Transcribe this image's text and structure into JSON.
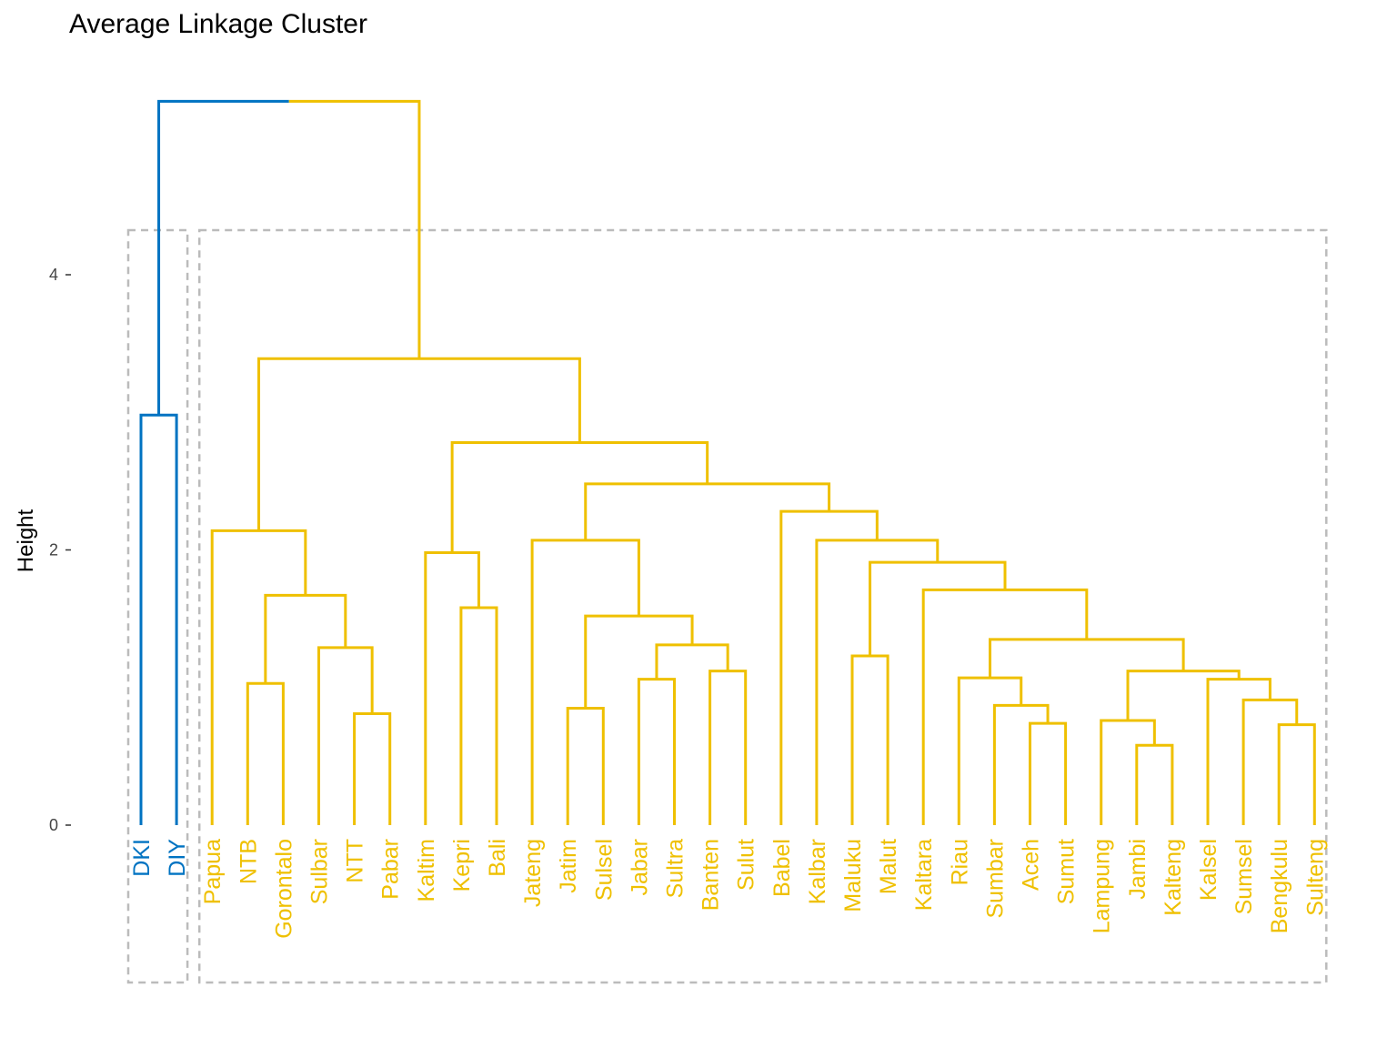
{
  "title": "Average Linkage Cluster",
  "chart_data": {
    "type": "dendrogram",
    "title": "Average Linkage Cluster",
    "ylabel": "Height",
    "xlabel": "",
    "ylim": [
      -0.95,
      4.95
    ],
    "yticks": [
      0,
      2,
      4
    ],
    "colors": {
      "cluster1": "#0073C2",
      "cluster2": "#EFC000",
      "box": "#BBBBBB",
      "axis": "#333333"
    },
    "clusters": [
      {
        "color": "cluster1",
        "leaves": [
          "DKI",
          "DIY"
        ]
      },
      {
        "color": "cluster2",
        "leaves": [
          "Papua",
          "NTB",
          "Gorontalo",
          "Sulbar",
          "NTT",
          "Pabar",
          "Kaltim",
          "Kepri",
          "Bali",
          "Jateng",
          "Jatim",
          "Sulsel",
          "Jabar",
          "Sultra",
          "Banten",
          "Sulut",
          "Babel",
          "Kalbar",
          "Maluku",
          "Malut",
          "Kaltara",
          "Riau",
          "Sumbar",
          "Aceh",
          "Sumut",
          "Lampung",
          "Jambi",
          "Kalteng",
          "Kalsel",
          "Sumsel",
          "Bengkulu",
          "Sulteng"
        ]
      }
    ],
    "leaves": [
      "DKI",
      "DIY",
      "Papua",
      "NTB",
      "Gorontalo",
      "Sulbar",
      "NTT",
      "Pabar",
      "Kaltim",
      "Kepri",
      "Bali",
      "Jateng",
      "Jatim",
      "Sulsel",
      "Jabar",
      "Sultra",
      "Banten",
      "Sulut",
      "Babel",
      "Kalbar",
      "Maluku",
      "Malut",
      "Kaltara",
      "Riau",
      "Sumbar",
      "Aceh",
      "Sumut",
      "Lampung",
      "Jambi",
      "Kalteng",
      "Kalsel",
      "Sumsel",
      "Bengkulu",
      "Sulteng"
    ],
    "merges": [
      {
        "left": "DKI",
        "right": "DIY",
        "height": 2.98
      },
      {
        "left": "NTB",
        "right": "Gorontalo",
        "height": 1.03
      },
      {
        "left": "NTT",
        "right": "Pabar",
        "height": 0.81
      },
      {
        "left": "Sulbar",
        "right": "NTT+Pabar",
        "height": 1.29
      },
      {
        "left": "NTB+Gorontalo",
        "right": "Sulbar+NTT+Pabar",
        "height": 1.67
      },
      {
        "left": "Papua",
        "right": "NTB..Pabar",
        "height": 2.14
      },
      {
        "left": "Kepri",
        "right": "Bali",
        "height": 1.58
      },
      {
        "left": "Kaltim",
        "right": "Kepri+Bali",
        "height": 1.98
      },
      {
        "left": "Jatim",
        "right": "Sulsel",
        "height": 0.85
      },
      {
        "left": "Jabar",
        "right": "Sultra",
        "height": 1.06
      },
      {
        "left": "Banten",
        "right": "Sulut",
        "height": 1.12
      },
      {
        "left": "Jabar+Sultra",
        "right": "Banten+Sulut",
        "height": 1.31
      },
      {
        "left": "Jatim+Sulsel",
        "right": "Jabar..Sulut",
        "height": 1.52
      },
      {
        "left": "Jateng",
        "right": "Jatim..Sulut",
        "height": 2.07
      },
      {
        "left": "Maluku",
        "right": "Malut",
        "height": 1.23
      },
      {
        "left": "Aceh",
        "right": "Sumut",
        "height": 0.74
      },
      {
        "left": "Sumbar",
        "right": "Aceh+Sumut",
        "height": 0.87
      },
      {
        "left": "Riau",
        "right": "Sumbar+Aceh+Sumut",
        "height": 1.07
      },
      {
        "left": "Jambi",
        "right": "Kalteng",
        "height": 0.58
      },
      {
        "left": "Lampung",
        "right": "Jambi+Kalteng",
        "height": 0.76
      },
      {
        "left": "Bengkulu",
        "right": "Sulteng",
        "height": 0.73
      },
      {
        "left": "Sumsel",
        "right": "Bengkulu+Sulteng",
        "height": 0.91
      },
      {
        "left": "Kalsel",
        "right": "Sumsel+Bengkulu+Sulteng",
        "height": 1.06
      },
      {
        "left": "Lampung..Kalteng",
        "right": "Kalsel..Sulteng",
        "height": 1.12
      },
      {
        "left": "Riau..Sumut",
        "right": "Lampung..Sulteng",
        "height": 1.35
      },
      {
        "left": "Kaltara",
        "right": "Riau..Sulteng",
        "height": 1.71
      },
      {
        "left": "Maluku+Malut",
        "right": "Kaltara..Sulteng",
        "height": 1.91
      },
      {
        "left": "Kalbar",
        "right": "Maluku..Sulteng",
        "height": 2.07
      },
      {
        "left": "Babel",
        "right": "Kalbar..Sulteng",
        "height": 2.28
      },
      {
        "left": "Jateng..Sulut",
        "right": "Babel..Sulteng",
        "height": 2.48
      },
      {
        "left": "Kaltim+Kepri+Bali",
        "right": "Jateng..Sulteng",
        "height": 2.78
      },
      {
        "left": "Papua..Pabar",
        "right": "Kaltim..Sulteng",
        "height": 3.39
      },
      {
        "left": "DKI+DIY",
        "right": "Papua..Sulteng",
        "height": 5.26
      }
    ]
  }
}
